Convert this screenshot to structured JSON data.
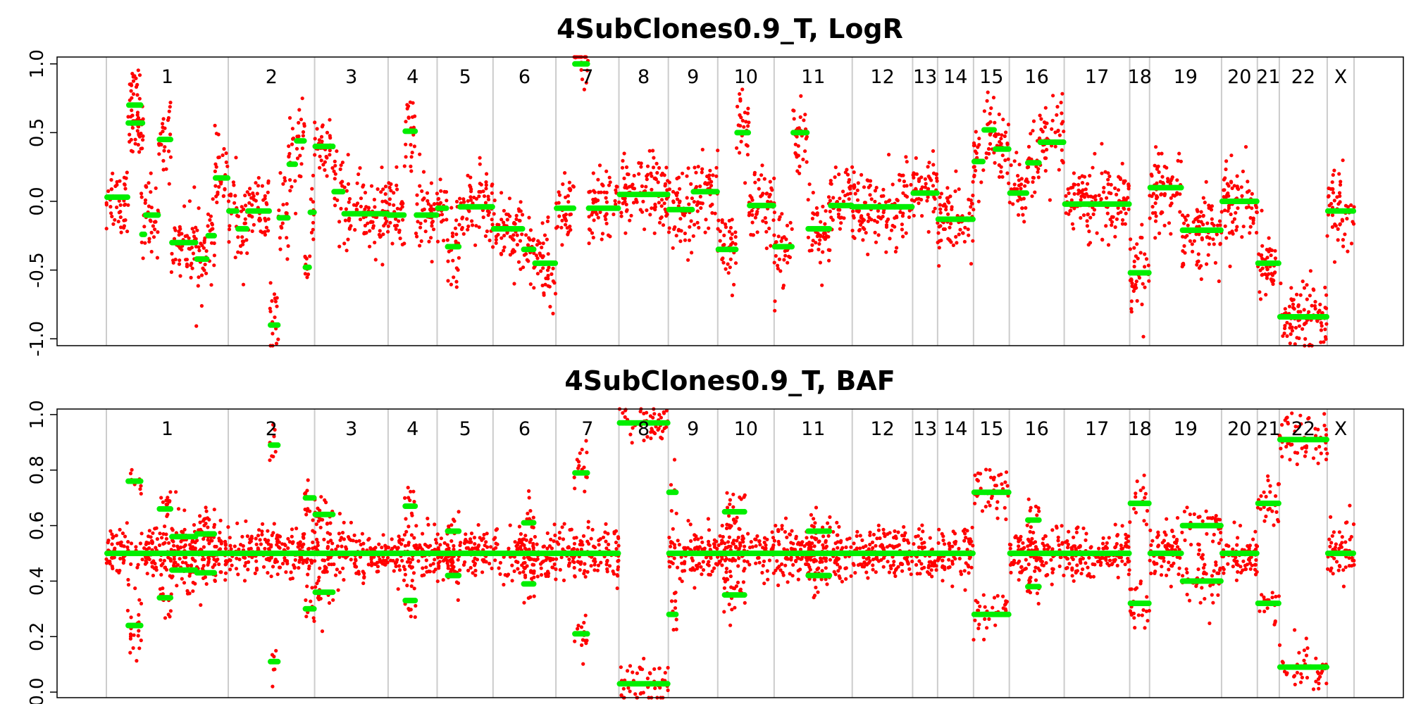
{
  "chart_data": [
    {
      "type": "scatter",
      "title": "4SubClones0.9_T, LogR",
      "ylim": [
        -1.05,
        1.05
      ],
      "yticks": [
        "1.0",
        "0.5",
        "0.0",
        "-0.5",
        "-1.0"
      ],
      "ytick_values": [
        1.0,
        0.5,
        0.0,
        -0.5,
        -1.0
      ],
      "chromosomes": [
        "1",
        "2",
        "3",
        "4",
        "5",
        "6",
        "7",
        "8",
        "9",
        "10",
        "11",
        "12",
        "13",
        "14",
        "15",
        "16",
        "17",
        "18",
        "19",
        "20",
        "21",
        "22",
        "X"
      ],
      "chromosome_boundaries": [
        0,
        0.0977,
        0.1669,
        0.2258,
        0.2651,
        0.3099,
        0.3603,
        0.4108,
        0.4504,
        0.49,
        0.5352,
        0.5978,
        0.6462,
        0.6662,
        0.695,
        0.7237,
        0.7677,
        0.8202,
        0.8361,
        0.8938,
        0.9225,
        0.9401,
        0.9785,
        1.0
      ],
      "series": [
        {
          "color": "#ff0000",
          "values_note": "dense per-probe LogR values"
        },
        {
          "color": "#00ee00",
          "segments": [
            {
              "chr": "1",
              "from": 0.0,
              "to": 0.0175,
              "y": 0.03
            },
            {
              "chr": "1",
              "from": 0.0175,
              "to": 0.028,
              "y": 0.7
            },
            {
              "chr": "1",
              "from": 0.017,
              "to": 0.0295,
              "y": 0.57
            },
            {
              "chr": "1",
              "from": 0.028,
              "to": 0.031,
              "y": -0.24
            },
            {
              "chr": "1",
              "from": 0.031,
              "to": 0.042,
              "y": -0.1
            },
            {
              "chr": "1",
              "from": 0.042,
              "to": 0.052,
              "y": 0.45
            },
            {
              "chr": "1",
              "from": 0.052,
              "to": 0.072,
              "y": -0.3
            },
            {
              "chr": "1",
              "from": 0.072,
              "to": 0.081,
              "y": -0.42
            },
            {
              "chr": "1",
              "from": 0.081,
              "to": 0.087,
              "y": -0.25
            },
            {
              "chr": "1",
              "from": 0.087,
              "to": 0.0977,
              "y": 0.17
            },
            {
              "chr": "2",
              "from": 0.0977,
              "to": 0.105,
              "y": -0.07
            },
            {
              "chr": "2",
              "from": 0.105,
              "to": 0.113,
              "y": -0.2
            },
            {
              "chr": "2",
              "from": 0.113,
              "to": 0.131,
              "y": -0.07
            },
            {
              "chr": "2",
              "from": 0.131,
              "to": 0.138,
              "y": -0.9
            },
            {
              "chr": "2",
              "from": 0.138,
              "to": 0.146,
              "y": -0.12
            },
            {
              "chr": "2",
              "from": 0.146,
              "to": 0.152,
              "y": 0.27
            },
            {
              "chr": "2",
              "from": 0.152,
              "to": 0.159,
              "y": 0.44
            },
            {
              "chr": "2",
              "from": 0.159,
              "to": 0.163,
              "y": -0.48
            },
            {
              "chr": "2",
              "from": 0.163,
              "to": 0.1669,
              "y": -0.08
            },
            {
              "chr": "3",
              "from": 0.1669,
              "to": 0.182,
              "y": 0.4
            },
            {
              "chr": "3",
              "from": 0.182,
              "to": 0.19,
              "y": 0.07
            },
            {
              "chr": "3",
              "from": 0.19,
              "to": 0.2258,
              "y": -0.09
            },
            {
              "chr": "4",
              "from": 0.2258,
              "to": 0.239,
              "y": -0.1
            },
            {
              "chr": "4",
              "from": 0.239,
              "to": 0.248,
              "y": 0.51
            },
            {
              "chr": "4",
              "from": 0.248,
              "to": 0.2651,
              "y": -0.1
            },
            {
              "chr": "5",
              "from": 0.2651,
              "to": 0.273,
              "y": -0.05
            },
            {
              "chr": "5",
              "from": 0.273,
              "to": 0.283,
              "y": -0.33
            },
            {
              "chr": "5",
              "from": 0.283,
              "to": 0.3099,
              "y": -0.04
            },
            {
              "chr": "6",
              "from": 0.3099,
              "to": 0.334,
              "y": -0.2
            },
            {
              "chr": "6",
              "from": 0.334,
              "to": 0.343,
              "y": -0.35
            },
            {
              "chr": "6",
              "from": 0.343,
              "to": 0.3603,
              "y": -0.45
            },
            {
              "chr": "7",
              "from": 0.3603,
              "to": 0.375,
              "y": -0.05
            },
            {
              "chr": "7",
              "from": 0.375,
              "to": 0.386,
              "y": 1.0
            },
            {
              "chr": "7",
              "from": 0.386,
              "to": 0.4108,
              "y": -0.05
            },
            {
              "chr": "8",
              "from": 0.4108,
              "to": 0.4504,
              "y": 0.05
            },
            {
              "chr": "9",
              "from": 0.4504,
              "to": 0.47,
              "y": -0.06
            },
            {
              "chr": "9",
              "from": 0.47,
              "to": 0.49,
              "y": 0.07
            },
            {
              "chr": "10",
              "from": 0.49,
              "to": 0.505,
              "y": -0.35
            },
            {
              "chr": "10",
              "from": 0.505,
              "to": 0.515,
              "y": 0.5
            },
            {
              "chr": "10",
              "from": 0.515,
              "to": 0.5352,
              "y": -0.03
            },
            {
              "chr": "11",
              "from": 0.5352,
              "to": 0.55,
              "y": -0.33
            },
            {
              "chr": "11",
              "from": 0.55,
              "to": 0.562,
              "y": 0.5
            },
            {
              "chr": "11",
              "from": 0.562,
              "to": 0.58,
              "y": -0.2
            },
            {
              "chr": "11",
              "from": 0.58,
              "to": 0.5978,
              "y": -0.03
            },
            {
              "chr": "12",
              "from": 0.5978,
              "to": 0.6462,
              "y": -0.04
            },
            {
              "chr": "13",
              "from": 0.6462,
              "to": 0.6662,
              "y": 0.06
            },
            {
              "chr": "14",
              "from": 0.6662,
              "to": 0.695,
              "y": -0.13
            },
            {
              "chr": "15",
              "from": 0.695,
              "to": 0.703,
              "y": 0.29
            },
            {
              "chr": "15",
              "from": 0.703,
              "to": 0.712,
              "y": 0.52
            },
            {
              "chr": "15",
              "from": 0.712,
              "to": 0.7237,
              "y": 0.38
            },
            {
              "chr": "16",
              "from": 0.7237,
              "to": 0.738,
              "y": 0.06
            },
            {
              "chr": "16",
              "from": 0.738,
              "to": 0.748,
              "y": 0.28
            },
            {
              "chr": "16",
              "from": 0.748,
              "to": 0.7677,
              "y": 0.43
            },
            {
              "chr": "17",
              "from": 0.7677,
              "to": 0.8202,
              "y": -0.02
            },
            {
              "chr": "18",
              "from": 0.8202,
              "to": 0.8361,
              "y": -0.52
            },
            {
              "chr": "19",
              "from": 0.8361,
              "to": 0.862,
              "y": 0.1
            },
            {
              "chr": "19",
              "from": 0.862,
              "to": 0.8938,
              "y": -0.21
            },
            {
              "chr": "20",
              "from": 0.8938,
              "to": 0.9225,
              "y": 0.0
            },
            {
              "chr": "21",
              "from": 0.9225,
              "to": 0.9401,
              "y": -0.45
            },
            {
              "chr": "22",
              "from": 0.9401,
              "to": 0.9785,
              "y": -0.84
            },
            {
              "chr": "X",
              "from": 0.9785,
              "to": 1.0,
              "y": -0.07
            }
          ]
        }
      ]
    },
    {
      "type": "scatter",
      "title": "4SubClones0.9_T, BAF",
      "ylim": [
        -0.02,
        1.02
      ],
      "yticks": [
        "1.0",
        "0.8",
        "0.6",
        "0.4",
        "0.2",
        "0.0"
      ],
      "ytick_values": [
        1.0,
        0.8,
        0.6,
        0.4,
        0.2,
        0.0
      ],
      "chromosomes": [
        "1",
        "2",
        "3",
        "4",
        "5",
        "6",
        "7",
        "8",
        "9",
        "10",
        "11",
        "12",
        "13",
        "14",
        "15",
        "16",
        "17",
        "18",
        "19",
        "20",
        "21",
        "22",
        "X"
      ],
      "series": [
        {
          "color": "#ff0000",
          "values_note": "dense per-probe BAF values"
        },
        {
          "color": "#00ee00",
          "segments": [
            {
              "chr": "1",
              "from": 0.0,
              "to": 0.0977,
              "y": 0.5
            },
            {
              "chr": "1",
              "from": 0.017,
              "to": 0.028,
              "y": 0.76,
              "mirror": true
            },
            {
              "chr": "1",
              "from": 0.042,
              "to": 0.052,
              "y": 0.66,
              "mirror": true
            },
            {
              "chr": "1",
              "from": 0.052,
              "to": 0.072,
              "y": 0.56,
              "mirror": true
            },
            {
              "chr": "1",
              "from": 0.072,
              "to": 0.087,
              "y": 0.57,
              "mirror": true
            },
            {
              "chr": "2",
              "from": 0.0977,
              "to": 0.1669,
              "y": 0.5
            },
            {
              "chr": "2",
              "from": 0.131,
              "to": 0.138,
              "y": 0.89,
              "mirror": true
            },
            {
              "chr": "2",
              "from": 0.159,
              "to": 0.1669,
              "y": 0.7,
              "mirror": true
            },
            {
              "chr": "3",
              "from": 0.1669,
              "to": 0.2258,
              "y": 0.5
            },
            {
              "chr": "3",
              "from": 0.1669,
              "to": 0.182,
              "y": 0.64,
              "mirror": true
            },
            {
              "chr": "4",
              "from": 0.2258,
              "to": 0.2651,
              "y": 0.5
            },
            {
              "chr": "4",
              "from": 0.239,
              "to": 0.248,
              "y": 0.67,
              "mirror": true
            },
            {
              "chr": "5",
              "from": 0.2651,
              "to": 0.3099,
              "y": 0.5
            },
            {
              "chr": "5",
              "from": 0.273,
              "to": 0.283,
              "y": 0.58,
              "mirror": true
            },
            {
              "chr": "6",
              "from": 0.3099,
              "to": 0.3603,
              "y": 0.5
            },
            {
              "chr": "6",
              "from": 0.334,
              "to": 0.343,
              "y": 0.61,
              "mirror": true
            },
            {
              "chr": "7",
              "from": 0.3603,
              "to": 0.4108,
              "y": 0.5
            },
            {
              "chr": "7",
              "from": 0.375,
              "to": 0.386,
              "y": 0.79,
              "mirror": true
            },
            {
              "chr": "8",
              "from": 0.4108,
              "to": 0.4504,
              "y": 0.97,
              "mirror": true
            },
            {
              "chr": "9",
              "from": 0.4504,
              "to": 0.49,
              "y": 0.5
            },
            {
              "chr": "9",
              "from": 0.4504,
              "to": 0.457,
              "y": 0.72,
              "mirror": true
            },
            {
              "chr": "10",
              "from": 0.49,
              "to": 0.5352,
              "y": 0.5
            },
            {
              "chr": "10",
              "from": 0.495,
              "to": 0.512,
              "y": 0.65,
              "mirror": true
            },
            {
              "chr": "11",
              "from": 0.5352,
              "to": 0.5978,
              "y": 0.5
            },
            {
              "chr": "11",
              "from": 0.562,
              "to": 0.58,
              "y": 0.58,
              "mirror": true
            },
            {
              "chr": "12",
              "from": 0.5978,
              "to": 0.6462,
              "y": 0.5
            },
            {
              "chr": "13",
              "from": 0.6462,
              "to": 0.6662,
              "y": 0.5
            },
            {
              "chr": "14",
              "from": 0.6662,
              "to": 0.695,
              "y": 0.5
            },
            {
              "chr": "15",
              "from": 0.695,
              "to": 0.7237,
              "y": 0.72,
              "mirror": true
            },
            {
              "chr": "16",
              "from": 0.7237,
              "to": 0.7677,
              "y": 0.5
            },
            {
              "chr": "16",
              "from": 0.738,
              "to": 0.748,
              "y": 0.62,
              "mirror": true
            },
            {
              "chr": "17",
              "from": 0.7677,
              "to": 0.8202,
              "y": 0.5
            },
            {
              "chr": "18",
              "from": 0.8202,
              "to": 0.8361,
              "y": 0.68,
              "mirror": true
            },
            {
              "chr": "19",
              "from": 0.8361,
              "to": 0.862,
              "y": 0.5
            },
            {
              "chr": "19",
              "from": 0.862,
              "to": 0.8938,
              "y": 0.6,
              "mirror": true
            },
            {
              "chr": "20",
              "from": 0.8938,
              "to": 0.9225,
              "y": 0.5
            },
            {
              "chr": "21",
              "from": 0.9225,
              "to": 0.9401,
              "y": 0.68,
              "mirror": true
            },
            {
              "chr": "22",
              "from": 0.9401,
              "to": 0.9785,
              "y": 0.91,
              "mirror": true
            },
            {
              "chr": "X",
              "from": 0.9785,
              "to": 1.0,
              "y": 0.5
            }
          ]
        }
      ]
    }
  ]
}
